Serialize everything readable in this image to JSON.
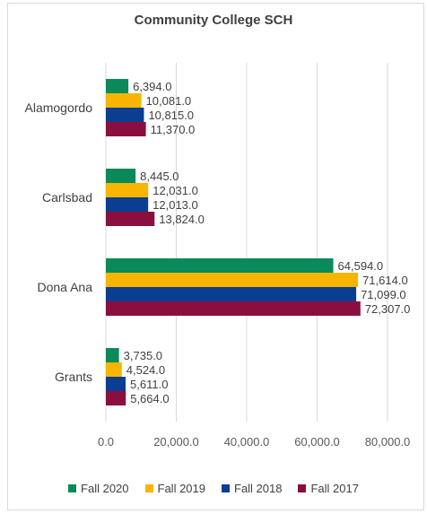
{
  "chart_data": {
    "type": "bar",
    "orientation": "horizontal",
    "title": "Community College SCH",
    "categories": [
      "Alamogordo",
      "Carlsbad",
      "Dona Ana",
      "Grants"
    ],
    "series": [
      {
        "name": "Fall 2020",
        "color": "#0a8a5a",
        "values": [
          6394.0,
          8445.0,
          64594.0,
          3735.0
        ],
        "labels": [
          "6,394.0",
          "8,445.0",
          "64,594.0",
          "3,735.0"
        ]
      },
      {
        "name": "Fall 2019",
        "color": "#f7b500",
        "values": [
          10081.0,
          12031.0,
          71614.0,
          4524.0
        ],
        "labels": [
          "10,081.0",
          "12,031.0",
          "71,614.0",
          "4,524.0"
        ]
      },
      {
        "name": "Fall 2018",
        "color": "#0b3d91",
        "values": [
          10815.0,
          12013.0,
          71099.0,
          5611.0
        ],
        "labels": [
          "10,815.0",
          "12,013.0",
          "71,099.0",
          "5,611.0"
        ]
      },
      {
        "name": "Fall 2017",
        "color": "#8b0f3e",
        "values": [
          11370.0,
          13824.0,
          72307.0,
          5664.0
        ],
        "labels": [
          "11,370.0",
          "13,824.0",
          "72,307.0",
          "5,664.0"
        ]
      }
    ],
    "xlim": [
      0,
      80000
    ],
    "xticks": [
      0,
      20000,
      40000,
      60000,
      80000
    ],
    "xtick_labels": [
      "0.0",
      "20,000.0",
      "40,000.0",
      "60,000.0",
      "80,000.0"
    ],
    "grid": "vertical",
    "legend": "bottom"
  }
}
